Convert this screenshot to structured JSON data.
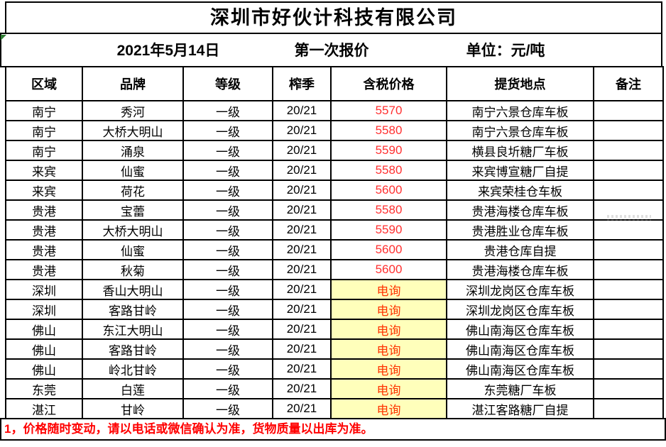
{
  "company_title": "深圳市好伙计科技有限公司",
  "quote_info": {
    "date": "2021年5月14日",
    "round": "第一次报价",
    "unit": "单位：元/吨"
  },
  "table": {
    "headers": [
      "区域",
      "品牌",
      "等级",
      "榨季",
      "含税价格",
      "提货地点",
      "备注"
    ],
    "rows": [
      {
        "region": "南宁",
        "brand": "秀河",
        "grade": "一级",
        "season": "20/21",
        "price": "5570",
        "inquiry": false,
        "location": "南宁六景仓库车板",
        "remark": ""
      },
      {
        "region": "南宁",
        "brand": "大桥大明山",
        "grade": "一级",
        "season": "20/21",
        "price": "5580",
        "inquiry": false,
        "location": "南宁六景仓库车板",
        "remark": ""
      },
      {
        "region": "南宁",
        "brand": "涌泉",
        "grade": "一级",
        "season": "20/21",
        "price": "5590",
        "inquiry": false,
        "location": "横县良圻糖厂车板",
        "remark": ""
      },
      {
        "region": "来宾",
        "brand": "仙蜜",
        "grade": "一级",
        "season": "20/21",
        "price": "5580",
        "inquiry": false,
        "location": "来宾博宣糖厂自提",
        "remark": ""
      },
      {
        "region": "来宾",
        "brand": "荷花",
        "grade": "一级",
        "season": "20/21",
        "price": "5600",
        "inquiry": false,
        "location": "来宾荣桂仓车板",
        "remark": ""
      },
      {
        "region": "贵港",
        "brand": "宝蕾",
        "grade": "一级",
        "season": "20/21",
        "price": "5580",
        "inquiry": false,
        "location": "贵港海楼仓库车板",
        "remark": ""
      },
      {
        "region": "贵港",
        "brand": "大桥大明山",
        "grade": "一级",
        "season": "20/21",
        "price": "5590",
        "inquiry": false,
        "location": "贵港胜业仓库车板",
        "remark": ""
      },
      {
        "region": "贵港",
        "brand": "仙蜜",
        "grade": "一级",
        "season": "20/21",
        "price": "5600",
        "inquiry": false,
        "location": "贵港仓库自提",
        "remark": ""
      },
      {
        "region": "贵港",
        "brand": "秋菊",
        "grade": "一级",
        "season": "20/21",
        "price": "5600",
        "inquiry": false,
        "location": "贵港海楼仓库车板",
        "remark": ""
      },
      {
        "region": "深圳",
        "brand": "香山大明山",
        "grade": "一级",
        "season": "20/21",
        "price": "电询",
        "inquiry": true,
        "location": "深圳龙岗区仓库车板",
        "remark": ""
      },
      {
        "region": "深圳",
        "brand": "客路甘岭",
        "grade": "一级",
        "season": "20/21",
        "price": "电询",
        "inquiry": true,
        "location": "深圳龙岗区仓库车板",
        "remark": ""
      },
      {
        "region": "佛山",
        "brand": "东江大明山",
        "grade": "一级",
        "season": "20/21",
        "price": "电询",
        "inquiry": true,
        "location": "佛山南海区仓库车板",
        "remark": ""
      },
      {
        "region": "佛山",
        "brand": "客路甘岭",
        "grade": "一级",
        "season": "20/21",
        "price": "电询",
        "inquiry": true,
        "location": "佛山南海区仓库车板",
        "remark": ""
      },
      {
        "region": "佛山",
        "brand": "岭北甘岭",
        "grade": "一级",
        "season": "20/21",
        "price": "电询",
        "inquiry": true,
        "location": "佛山南海区仓库车板",
        "remark": ""
      },
      {
        "region": "东莞",
        "brand": "白莲",
        "grade": "一级",
        "season": "20/21",
        "price": "电询",
        "inquiry": true,
        "location": "东莞糖厂车板",
        "remark": ""
      },
      {
        "region": "湛江",
        "brand": "甘岭",
        "grade": "一级",
        "season": "20/21",
        "price": "电询",
        "inquiry": true,
        "location": "湛江客路糖厂自提",
        "remark": ""
      }
    ]
  },
  "footer_note": "1，价格随时变动，请以电话或微信确认为准，货物质量以出库为准。",
  "colors": {
    "price_text": "#ff2f2f",
    "inquiry_text": "#ff3300",
    "inquiry_bg": "#ffffbb",
    "note_text": "#ff0000",
    "border": "#000000",
    "corner_marker": "#2e7d32"
  },
  "icons": {
    "corner_marker": "green-triangle-icon"
  }
}
